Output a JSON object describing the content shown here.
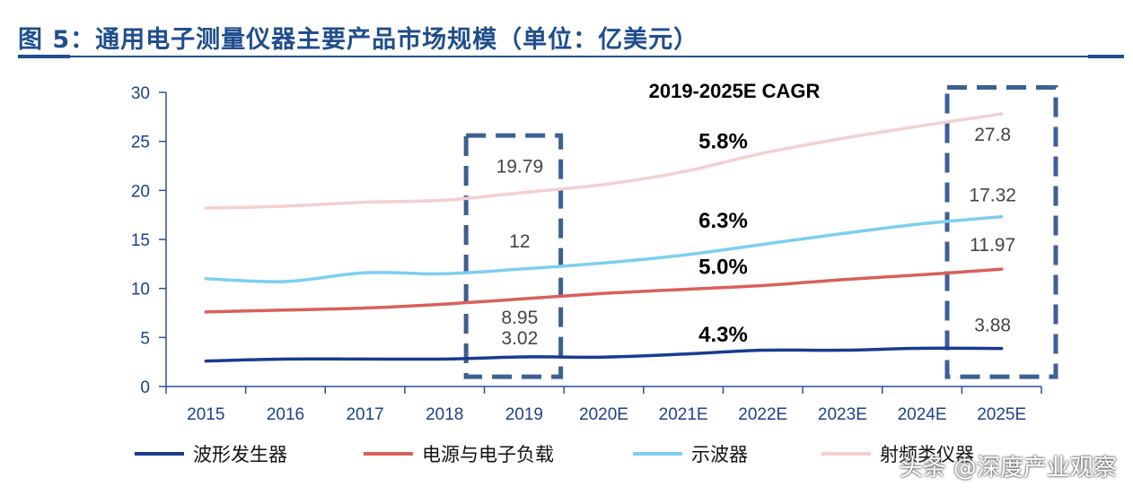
{
  "title": "图 5：通用电子测量仪器主要产品市场规模（单位：亿美元）",
  "watermark": "头条 @深度产业观察",
  "chart_data": {
    "type": "line",
    "categories": [
      "2015",
      "2016",
      "2017",
      "2018",
      "2019",
      "2020E",
      "2021E",
      "2022E",
      "2023E",
      "2024E",
      "2025E"
    ],
    "ylim": [
      0,
      30
    ],
    "yticks": [
      0,
      5,
      10,
      15,
      20,
      25,
      30
    ],
    "grid": false,
    "legend_position": "bottom",
    "series": [
      {
        "name": "波形发生器",
        "color": "#1a3c8f",
        "values": [
          2.6,
          2.8,
          2.8,
          2.8,
          3.02,
          3.0,
          3.3,
          3.7,
          3.7,
          3.9,
          3.88
        ]
      },
      {
        "name": "电源与电子负载",
        "color": "#d9605a",
        "values": [
          7.6,
          7.8,
          8.0,
          8.4,
          8.95,
          9.5,
          9.9,
          10.3,
          10.9,
          11.4,
          11.97
        ]
      },
      {
        "name": "示波器",
        "color": "#7ccff0",
        "values": [
          11.0,
          10.7,
          11.6,
          11.5,
          12.0,
          12.6,
          13.4,
          14.5,
          15.6,
          16.6,
          17.32
        ]
      },
      {
        "name": "射频类仪器",
        "color": "#f4cfd0",
        "values": [
          18.2,
          18.4,
          18.8,
          19.0,
          19.79,
          20.6,
          21.9,
          23.8,
          25.3,
          26.6,
          27.8
        ]
      }
    ],
    "data_labels": [
      {
        "category": "2019",
        "text": "19.79",
        "series": "射频类仪器"
      },
      {
        "category": "2019",
        "text": "12",
        "series": "示波器"
      },
      {
        "category": "2019",
        "text": "8.95",
        "series": "电源与电子负载"
      },
      {
        "category": "2019",
        "text": "3.02",
        "series": "波形发生器"
      },
      {
        "category": "2025E",
        "text": "27.8",
        "series": "射频类仪器"
      },
      {
        "category": "2025E",
        "text": "17.32",
        "series": "示波器"
      },
      {
        "category": "2025E",
        "text": "11.97",
        "series": "电源与电子负载"
      },
      {
        "category": "2025E",
        "text": "3.88",
        "series": "波形发生器"
      }
    ],
    "annotation_title": "2019-2025E  CAGR",
    "cagr": [
      {
        "series": "射频类仪器",
        "text": "5.8%"
      },
      {
        "series": "示波器",
        "text": "6.3%"
      },
      {
        "series": "电源与电子负载",
        "text": "5.0%"
      },
      {
        "series": "波形发生器",
        "text": "4.3%"
      }
    ],
    "highlight_boxes": [
      "2019",
      "2025E"
    ]
  }
}
